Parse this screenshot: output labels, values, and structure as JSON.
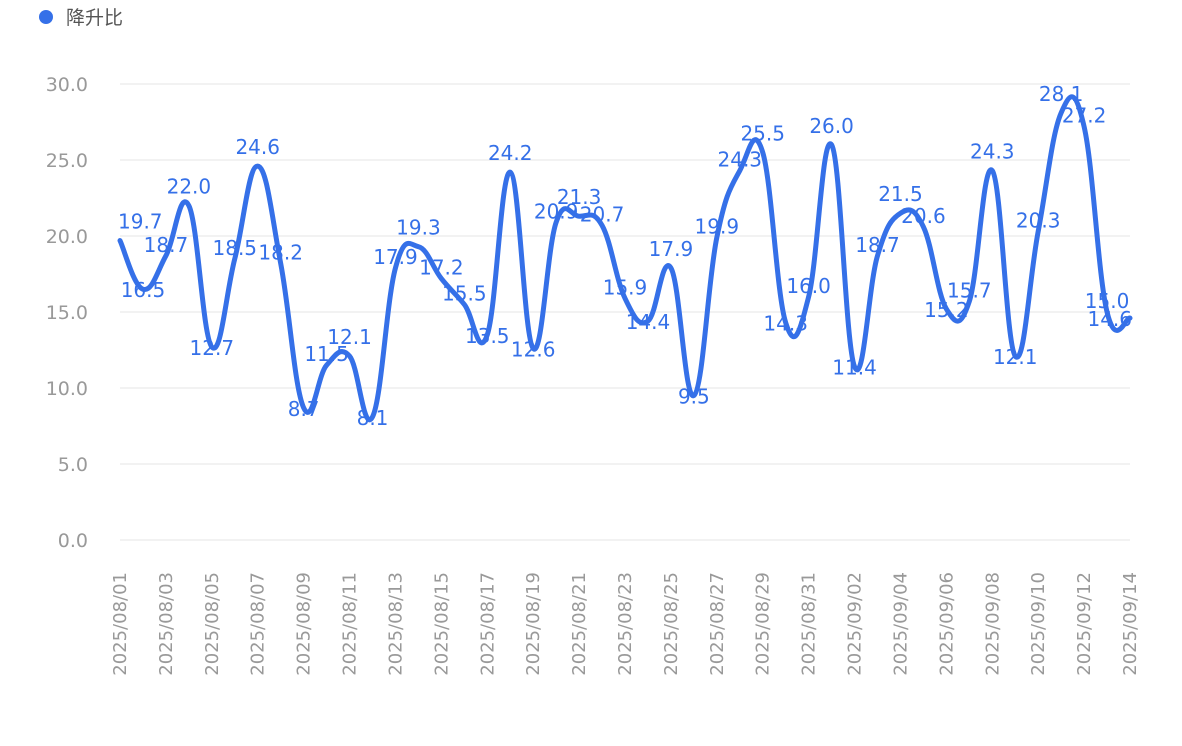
{
  "chart_data": {
    "type": "line",
    "series": [
      {
        "name": "降升比",
        "color": "#3570e8",
        "values": [
          19.7,
          16.5,
          18.7,
          22.0,
          12.7,
          18.5,
          24.6,
          18.2,
          8.7,
          11.5,
          12.1,
          8.1,
          17.9,
          19.3,
          17.2,
          15.5,
          13.5,
          24.2,
          12.6,
          20.9,
          21.3,
          20.7,
          15.9,
          14.4,
          17.9,
          9.5,
          19.9,
          24.3,
          25.5,
          14.3,
          16.0,
          26.0,
          11.4,
          18.7,
          21.5,
          20.6,
          15.2,
          15.7,
          24.3,
          12.1,
          20.3,
          28.1,
          27.2,
          15.0,
          14.6
        ]
      }
    ],
    "x": [
      "2025/08/01",
      "2025/08/02",
      "2025/08/03",
      "2025/08/04",
      "2025/08/05",
      "2025/08/06",
      "2025/08/07",
      "2025/08/08",
      "2025/08/09",
      "2025/08/10",
      "2025/08/11",
      "2025/08/12",
      "2025/08/13",
      "2025/08/14",
      "2025/08/15",
      "2025/08/16",
      "2025/08/17",
      "2025/08/18",
      "2025/08/19",
      "2025/08/20",
      "2025/08/21",
      "2025/08/22",
      "2025/08/23",
      "2025/08/24",
      "2025/08/25",
      "2025/08/26",
      "2025/08/27",
      "2025/08/28",
      "2025/08/29",
      "2025/08/30",
      "2025/08/31",
      "2025/09/01",
      "2025/09/02",
      "2025/09/03",
      "2025/09/04",
      "2025/09/05",
      "2025/09/06",
      "2025/09/07",
      "2025/09/08",
      "2025/09/09",
      "2025/09/10",
      "2025/09/11",
      "2025/09/12",
      "2025/09/13",
      "2025/09/14"
    ],
    "x_tick_labels": [
      "2025/08/01",
      "2025/08/03",
      "2025/08/05",
      "2025/08/07",
      "2025/08/09",
      "2025/08/11",
      "2025/08/13",
      "2025/08/15",
      "2025/08/17",
      "2025/08/19",
      "2025/08/21",
      "2025/08/23",
      "2025/08/25",
      "2025/08/27",
      "2025/08/29",
      "2025/08/31",
      "2025/09/02",
      "2025/09/04",
      "2025/09/06",
      "2025/09/08",
      "2025/09/10",
      "2025/09/12",
      "2025/09/14"
    ],
    "y_ticks": [
      "0.0",
      "5.0",
      "10.0",
      "15.0",
      "20.0",
      "25.0",
      "30.0"
    ],
    "ylim": [
      0,
      30
    ],
    "grid": true,
    "legend_position": "top-left"
  }
}
